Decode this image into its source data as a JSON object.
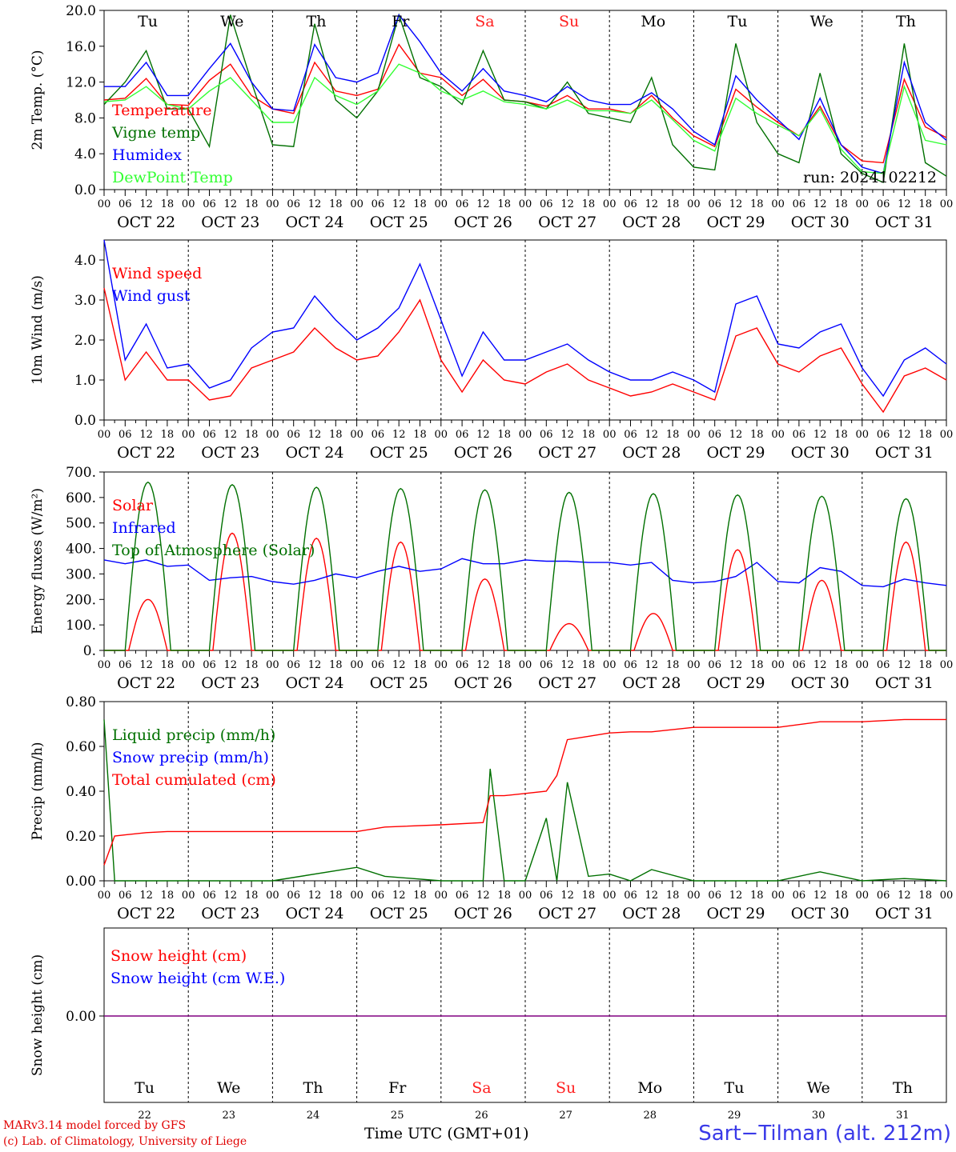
{
  "chart_data": [
    {
      "type": "line",
      "ylabel": "2m Temp. (°C)",
      "ylim": [
        0,
        20
      ],
      "yticks": [
        "0.0",
        "4.0",
        "8.0",
        "12.0",
        "16.0",
        "20.0"
      ],
      "day_names": [
        "Tu",
        "We",
        "Th",
        "Fr",
        "Sa",
        "Su",
        "Mo",
        "Tu",
        "We",
        "Th"
      ],
      "run_label": "run: 2024102212",
      "x_hours": [
        0,
        6,
        12,
        18,
        24,
        30,
        36,
        42,
        48,
        54,
        60,
        66,
        72,
        78,
        84,
        90,
        96,
        102,
        108,
        114,
        120,
        126,
        132,
        138,
        144,
        150,
        156,
        162,
        168,
        174,
        180,
        186,
        192,
        198,
        204,
        210,
        216,
        222,
        228,
        234,
        240
      ],
      "series": [
        {
          "name": "Temperature",
          "color": "#ff0000",
          "values": [
            10.0,
            10.2,
            12.4,
            9.5,
            9.4,
            12.2,
            14.0,
            10.5,
            9.0,
            8.5,
            14.2,
            11.0,
            10.5,
            11.2,
            16.2,
            13.0,
            12.5,
            10.5,
            12.3,
            10.0,
            9.8,
            9.3,
            10.5,
            9.0,
            9.0,
            8.5,
            10.5,
            8.0,
            6.0,
            4.8,
            11.2,
            9.2,
            7.5,
            6.0,
            9.3,
            5.0,
            3.2,
            3.0,
            12.3,
            7.0,
            5.8
          ]
        },
        {
          "name": "Vigne temp",
          "color": "#007000",
          "values": [
            9.5,
            12.0,
            15.5,
            9.0,
            9.0,
            4.8,
            19.5,
            12.0,
            5.0,
            4.8,
            18.5,
            10.0,
            8.0,
            11.0,
            19.5,
            12.5,
            11.5,
            9.5,
            15.5,
            10.0,
            9.8,
            9.0,
            12.0,
            8.5,
            8.0,
            7.5,
            12.5,
            5.0,
            2.5,
            2.2,
            16.3,
            7.5,
            4.0,
            3.0,
            13.0,
            4.0,
            1.8,
            0.8,
            16.3,
            3.0,
            1.5
          ]
        },
        {
          "name": "Humidex",
          "color": "#0000ff",
          "values": [
            11.5,
            11.5,
            14.2,
            10.5,
            10.5,
            13.5,
            16.3,
            12.0,
            9.0,
            8.8,
            16.2,
            12.5,
            12.0,
            13.0,
            19.5,
            16.5,
            13.0,
            11.0,
            13.5,
            11.0,
            10.5,
            9.8,
            11.5,
            10.0,
            9.5,
            9.5,
            10.8,
            9.0,
            6.5,
            5.0,
            12.7,
            10.0,
            7.8,
            5.6,
            10.2,
            5.0,
            2.5,
            1.8,
            14.2,
            7.5,
            5.5
          ]
        },
        {
          "name": "DewPoint Temp",
          "color": "#33ff33",
          "values": [
            9.8,
            10.0,
            11.5,
            9.5,
            9.0,
            11.0,
            12.5,
            10.0,
            7.5,
            7.5,
            12.5,
            10.5,
            9.5,
            11.0,
            14.0,
            13.0,
            11.0,
            10.0,
            11.0,
            9.8,
            9.5,
            9.0,
            10.0,
            8.8,
            8.8,
            8.5,
            10.0,
            7.8,
            5.5,
            4.3,
            10.2,
            8.5,
            7.2,
            6.0,
            9.0,
            4.5,
            2.0,
            1.8,
            11.5,
            5.5,
            5.0
          ]
        }
      ]
    },
    {
      "type": "line",
      "ylabel": "10m Wind (m/s)",
      "ylim": [
        0,
        4.5
      ],
      "yticks": [
        "0.0",
        "1.0",
        "2.0",
        "3.0",
        "4.0"
      ],
      "x_hours": [
        0,
        6,
        12,
        18,
        24,
        30,
        36,
        42,
        48,
        54,
        60,
        66,
        72,
        78,
        84,
        90,
        96,
        102,
        108,
        114,
        120,
        126,
        132,
        138,
        144,
        150,
        156,
        162,
        168,
        174,
        180,
        186,
        192,
        198,
        204,
        210,
        216,
        222,
        228,
        234,
        240
      ],
      "series": [
        {
          "name": "Wind speed",
          "color": "#ff0000",
          "values": [
            3.3,
            1.0,
            1.7,
            1.0,
            1.0,
            0.5,
            0.6,
            1.3,
            1.5,
            1.7,
            2.3,
            1.8,
            1.5,
            1.6,
            2.2,
            3.0,
            1.5,
            0.7,
            1.5,
            1.0,
            0.9,
            1.2,
            1.4,
            1.0,
            0.8,
            0.6,
            0.7,
            0.9,
            0.7,
            0.5,
            2.1,
            2.3,
            1.4,
            1.2,
            1.6,
            1.8,
            0.9,
            0.2,
            1.1,
            1.3,
            1.0
          ]
        },
        {
          "name": "Wind gust",
          "color": "#0000ff",
          "values": [
            4.5,
            1.5,
            2.4,
            1.3,
            1.4,
            0.8,
            1.0,
            1.8,
            2.2,
            2.3,
            3.1,
            2.5,
            2.0,
            2.3,
            2.8,
            3.9,
            2.5,
            1.1,
            2.2,
            1.5,
            1.5,
            1.7,
            1.9,
            1.5,
            1.2,
            1.0,
            1.0,
            1.2,
            1.0,
            0.7,
            2.9,
            3.1,
            1.9,
            1.8,
            2.2,
            2.4,
            1.3,
            0.6,
            1.5,
            1.8,
            1.4
          ]
        }
      ]
    },
    {
      "type": "line",
      "ylabel": "Energy fluxes (W/m²)",
      "ylim": [
        0,
        700
      ],
      "yticks": [
        "0.",
        "100.",
        "200.",
        "300.",
        "400.",
        "500.",
        "600.",
        "700."
      ],
      "x_hours": [
        0,
        6,
        12,
        18,
        24,
        30,
        36,
        42,
        48,
        54,
        60,
        66,
        72,
        78,
        84,
        90,
        96,
        102,
        108,
        114,
        120,
        126,
        132,
        138,
        144,
        150,
        156,
        162,
        168,
        174,
        180,
        186,
        192,
        198,
        204,
        210,
        216,
        222,
        228,
        234,
        240
      ],
      "series": [
        {
          "name": "Solar",
          "color": "#ff0000",
          "solar_peaks": [
            200,
            460,
            440,
            425,
            280,
            105,
            145,
            395,
            275,
            425
          ],
          "values": [
            0,
            0,
            200,
            0,
            0,
            0,
            460,
            0,
            0,
            0,
            440,
            0,
            0,
            0,
            425,
            0,
            0,
            0,
            280,
            0,
            0,
            0,
            105,
            0,
            0,
            0,
            145,
            0,
            0,
            0,
            395,
            0,
            0,
            0,
            275,
            0,
            0,
            0,
            425,
            0,
            0
          ]
        },
        {
          "name": "Infrared",
          "color": "#0000ff",
          "values": [
            355,
            340,
            355,
            330,
            335,
            275,
            285,
            290,
            270,
            260,
            275,
            300,
            285,
            310,
            330,
            310,
            320,
            360,
            340,
            340,
            355,
            350,
            350,
            345,
            345,
            335,
            345,
            275,
            265,
            270,
            290,
            345,
            270,
            265,
            325,
            310,
            255,
            250,
            280,
            265,
            255
          ]
        },
        {
          "name": "Top of Atmosphere (Solar)",
          "color": "#007000",
          "toa_peaks": [
            660,
            650,
            640,
            635,
            630,
            620,
            615,
            610,
            605,
            595
          ],
          "values": [
            0,
            0,
            660,
            0,
            0,
            0,
            650,
            0,
            0,
            0,
            640,
            0,
            0,
            0,
            635,
            0,
            0,
            0,
            630,
            0,
            0,
            0,
            620,
            0,
            0,
            0,
            615,
            0,
            0,
            0,
            610,
            0,
            0,
            0,
            605,
            0,
            0,
            0,
            595,
            0,
            0
          ]
        }
      ]
    },
    {
      "type": "line",
      "ylabel": "Precip (mm/h)",
      "ylim": [
        0,
        0.8
      ],
      "yticks": [
        "0.00",
        "0.20",
        "0.40",
        "0.60",
        "0.80"
      ],
      "x_hours": [
        0,
        3,
        6,
        12,
        18,
        24,
        48,
        72,
        80,
        96,
        108,
        110,
        114,
        120,
        126,
        129,
        132,
        138,
        144,
        150,
        156,
        168,
        180,
        192,
        204,
        216,
        228,
        240
      ],
      "series": [
        {
          "name": "Liquid precip (mm/h)",
          "color": "#007000",
          "values": [
            0.72,
            0.0,
            0.0,
            0.0,
            0.0,
            0.0,
            0.0,
            0.06,
            0.02,
            0.0,
            0.0,
            0.5,
            0.0,
            0.0,
            0.28,
            0.0,
            0.44,
            0.02,
            0.03,
            0.0,
            0.05,
            0.0,
            0.0,
            0.0,
            0.04,
            0.0,
            0.01,
            0.0
          ]
        },
        {
          "name": "Snow precip (mm/h)",
          "color": "#0000ff",
          "values": []
        },
        {
          "name": "Total cumulated (cm)",
          "color": "#ff0000",
          "values": [
            0.07,
            0.2,
            0.205,
            0.215,
            0.22,
            0.22,
            0.22,
            0.22,
            0.24,
            0.25,
            0.26,
            0.38,
            0.38,
            0.39,
            0.4,
            0.47,
            0.63,
            0.645,
            0.66,
            0.665,
            0.665,
            0.685,
            0.685,
            0.685,
            0.71,
            0.71,
            0.72,
            0.72
          ]
        }
      ]
    },
    {
      "type": "line",
      "ylabel": "Snow height (cm)",
      "yticks": [
        "0.00"
      ],
      "bottom_day_names": [
        "Tu",
        "We",
        "Th",
        "Fr",
        "Sa",
        "Su",
        "Mo",
        "Tu",
        "We",
        "Th"
      ],
      "bottom_day_numbers": [
        "22",
        "23",
        "24",
        "25",
        "26",
        "27",
        "28",
        "29",
        "30",
        "31"
      ],
      "series": [
        {
          "name": "Snow height (cm)",
          "color": "#ff0000",
          "values": [
            0,
            0
          ]
        },
        {
          "name": "Snow height (cm W.E.)",
          "color": "#0000ff",
          "values": [
            0,
            0
          ]
        }
      ]
    }
  ],
  "x_axis": {
    "hour_ticks": [
      "00",
      "06",
      "12",
      "18"
    ],
    "end_tick": "00",
    "dates": [
      "OCT 22",
      "OCT 23",
      "OCT 24",
      "OCT 25",
      "OCT 26",
      "OCT 27",
      "OCT 28",
      "OCT 29",
      "OCT 30",
      "OCT 31"
    ],
    "weekend_color": "#ff2020"
  },
  "footer": {
    "model_line": "MARv3.14 model forced by GFS",
    "credit_line": "(c) Lab. of Climatology, University of Liege",
    "x_title": "Time UTC (GMT+01)",
    "station": "Sart−Tilman (alt. 212m)"
  }
}
